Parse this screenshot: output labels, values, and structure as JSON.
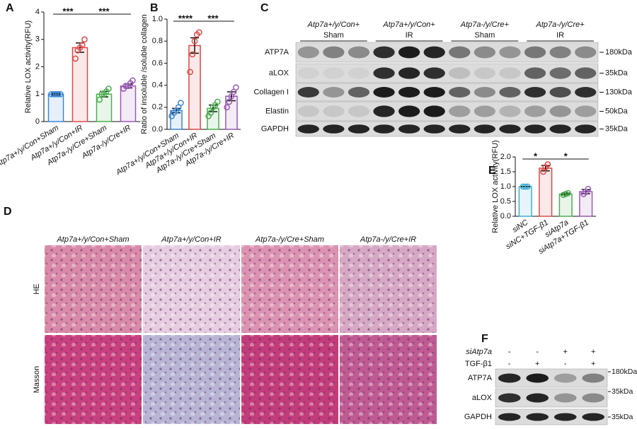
{
  "chart_data": [
    {
      "type": "bar",
      "panel": "A",
      "ylabel": "Relative LOX activity(RFU)",
      "categories": [
        "Atp7a+/y/Con+Sham",
        "Atp7a+/y/Con+IR",
        "Atp7a-/y/Cre+Sham",
        "Atp7a-/y/Cre+IR"
      ],
      "values": [
        1.0,
        2.7,
        1.0,
        1.3
      ],
      "errors": [
        0.03,
        0.17,
        0.1,
        0.07
      ],
      "points": [
        [
          1,
          1,
          1,
          1,
          1
        ],
        [
          2.3,
          2.6,
          2.7,
          2.8,
          3.0
        ],
        [
          0.8,
          1.0,
          1.0,
          1.1,
          1.2
        ],
        [
          1.2,
          1.3,
          1.3,
          1.4,
          1.5
        ]
      ],
      "colors": [
        "#3a86d4",
        "#e04848",
        "#4caf50",
        "#9b59b6"
      ],
      "ylim": [
        0,
        4
      ],
      "yticks": [
        0,
        1,
        2,
        3,
        4
      ],
      "significance": [
        "***",
        "***"
      ]
    },
    {
      "type": "bar",
      "panel": "B",
      "ylabel": "Ratio of insoluble /soluble collagen",
      "categories": [
        "Atp7a+/y/Con+Sham",
        "Atp7a+/y/Con+IR",
        "Atp7a-/y/Cre+Sham",
        "Atp7a-/y/Cre+IR"
      ],
      "values": [
        0.17,
        0.76,
        0.19,
        0.3
      ],
      "errors": [
        0.02,
        0.07,
        0.03,
        0.04
      ],
      "points": [
        [
          0.12,
          0.15,
          0.17,
          0.2,
          0.24
        ],
        [
          0.52,
          0.68,
          0.8,
          0.86,
          0.88
        ],
        [
          0.12,
          0.15,
          0.2,
          0.22,
          0.25
        ],
        [
          0.2,
          0.25,
          0.3,
          0.34,
          0.38
        ]
      ],
      "colors": [
        "#3a86d4",
        "#e04848",
        "#4caf50",
        "#9b59b6"
      ],
      "ylim": [
        0,
        1
      ],
      "yticks": [
        {
          "value": 0,
          "label": "0.0"
        },
        0.2,
        0.4,
        0.6,
        0.8,
        {
          "value": 1,
          "label": "1.0"
        }
      ],
      "significance": [
        "****",
        "***"
      ]
    },
    {
      "type": "bar",
      "panel": "E",
      "ylabel": "Relative LOX activity(RFU)",
      "categories": [
        "siNC",
        "siNC+TGF-β1",
        "siAtp7a",
        "siAtp7a+TGF-β1"
      ],
      "values": [
        1.0,
        1.62,
        0.75,
        0.83
      ],
      "errors": [
        0.01,
        0.09,
        0.03,
        0.07
      ],
      "points": [
        [
          1,
          1,
          1
        ],
        [
          1.5,
          1.65,
          1.75
        ],
        [
          0.72,
          0.75,
          0.78
        ],
        [
          0.75,
          0.82,
          0.92
        ]
      ],
      "colors": [
        "#3ab0d8",
        "#e04848",
        "#4caf50",
        "#9b59b6"
      ],
      "ylim": [
        0,
        2
      ],
      "yticks": [
        {
          "value": 0,
          "label": "0.0"
        },
        0.5,
        {
          "value": 1,
          "label": "1.0"
        },
        1.5,
        {
          "value": 2,
          "label": "2.0"
        }
      ],
      "significance": [
        "*",
        "*"
      ]
    }
  ],
  "blot_c": {
    "panel": "C",
    "groups": [
      {
        "genotype": "Atp7a+/y/Con+",
        "treatment": "Sham"
      },
      {
        "genotype": "Atp7a+/y/Con+",
        "treatment": "IR"
      },
      {
        "genotype": "Atp7a-/y/Cre+",
        "treatment": "Sham"
      },
      {
        "genotype": "Atp7a-/y/Cre+",
        "treatment": "IR"
      }
    ],
    "rows": [
      "ATP7A",
      "aLOX",
      "Collagen I",
      "Elastin",
      "GAPDH"
    ],
    "markers": [
      "180kDa",
      "35kDa",
      "130kDa",
      "50kDa",
      "35kDa"
    ]
  },
  "histology_d": {
    "panel": "D",
    "columns": [
      "Atp7a+/y/Con+Sham",
      "Atp7a+/y/Con+IR",
      "Atp7a-/y/Cre+Sham",
      "Atp7a-/y/Cre+IR"
    ],
    "rows": [
      "HE",
      "Masson"
    ]
  },
  "blot_f": {
    "panel": "F",
    "conditions": [
      {
        "name": "siAtp7a",
        "signs": [
          "-",
          "-",
          "+",
          "+"
        ]
      },
      {
        "name": "TGF-β1",
        "signs": [
          "-",
          "+",
          "-",
          "+"
        ]
      }
    ],
    "rows": [
      "ATP7A",
      "aLOX",
      "GAPDH"
    ],
    "markers": [
      "180kDa",
      "35kDa",
      "35kDa"
    ]
  }
}
